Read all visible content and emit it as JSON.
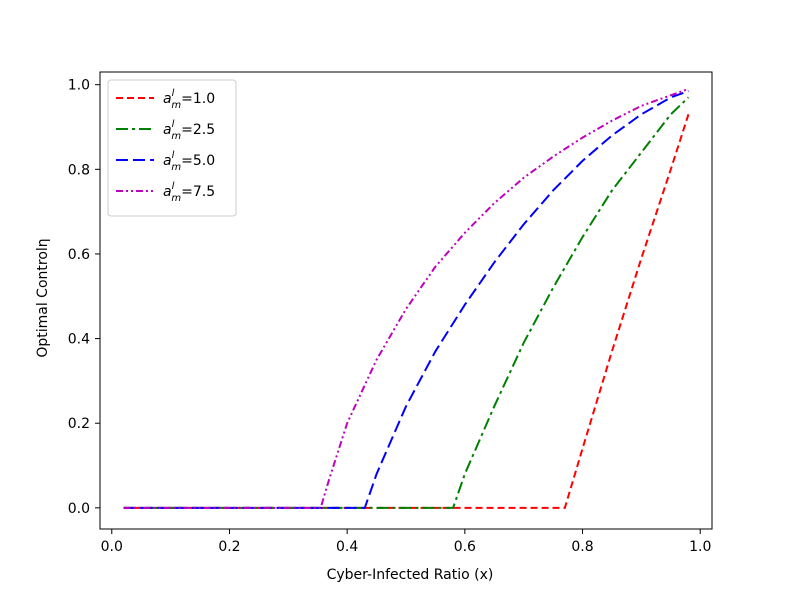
{
  "chart_data": {
    "type": "line",
    "title": "",
    "xlabel": "Cyber-Infected Ratio (x)",
    "ylabel": "Optimal Controlη",
    "xlim": [
      -0.02,
      1.02
    ],
    "ylim": [
      -0.05,
      1.03
    ],
    "xticks": [
      0.0,
      0.2,
      0.4,
      0.6,
      0.8,
      1.0
    ],
    "xtick_labels": [
      "0.0",
      "0.2",
      "0.4",
      "0.6",
      "0.8",
      "1.0"
    ],
    "yticks": [
      0.0,
      0.2,
      0.4,
      0.6,
      0.8,
      1.0
    ],
    "ytick_labels": [
      "0.0",
      "0.2",
      "0.4",
      "0.6",
      "0.8",
      "1.0"
    ],
    "grid": false,
    "legend_position": "top-left",
    "series": [
      {
        "name": "a_m^l=1.0",
        "legend_value": "=1.0",
        "color": "#ff0000",
        "dash": "7,4",
        "x": [
          0.02,
          0.1,
          0.2,
          0.3,
          0.4,
          0.5,
          0.6,
          0.7,
          0.77,
          0.8,
          0.85,
          0.9,
          0.95,
          0.98
        ],
        "y": [
          0.0,
          0.0,
          0.0,
          0.0,
          0.0,
          0.0,
          0.0,
          0.0,
          0.0,
          0.14,
          0.37,
          0.59,
          0.8,
          0.93
        ]
      },
      {
        "name": "a_m^l=2.5",
        "legend_value": "=2.5",
        "color": "#008000",
        "dash": "12,4,3,4",
        "x": [
          0.02,
          0.1,
          0.2,
          0.3,
          0.4,
          0.5,
          0.58,
          0.6,
          0.65,
          0.7,
          0.75,
          0.8,
          0.85,
          0.9,
          0.95,
          0.98
        ],
        "y": [
          0.0,
          0.0,
          0.0,
          0.0,
          0.0,
          0.0,
          0.0,
          0.08,
          0.24,
          0.39,
          0.52,
          0.64,
          0.75,
          0.84,
          0.93,
          0.97
        ]
      },
      {
        "name": "a_m^l=5.0",
        "legend_value": "=5.0",
        "color": "#0000ff",
        "dash": "12,5",
        "x": [
          0.02,
          0.1,
          0.2,
          0.3,
          0.43,
          0.45,
          0.5,
          0.55,
          0.6,
          0.65,
          0.7,
          0.75,
          0.8,
          0.85,
          0.9,
          0.95,
          0.98
        ],
        "y": [
          0.0,
          0.0,
          0.0,
          0.0,
          0.0,
          0.08,
          0.24,
          0.37,
          0.48,
          0.58,
          0.67,
          0.75,
          0.82,
          0.88,
          0.93,
          0.97,
          0.985
        ]
      },
      {
        "name": "a_m^l=7.5",
        "legend_value": "=7.5",
        "color": "#bf00bf",
        "dash": "7,3,2,3,2,3",
        "x": [
          0.02,
          0.1,
          0.2,
          0.3,
          0.355,
          0.37,
          0.4,
          0.45,
          0.5,
          0.55,
          0.6,
          0.65,
          0.7,
          0.75,
          0.8,
          0.85,
          0.9,
          0.95,
          0.98
        ],
        "y": [
          0.0,
          0.0,
          0.0,
          0.0,
          0.0,
          0.07,
          0.2,
          0.35,
          0.47,
          0.57,
          0.65,
          0.72,
          0.78,
          0.83,
          0.875,
          0.915,
          0.95,
          0.975,
          0.99
        ]
      }
    ]
  }
}
